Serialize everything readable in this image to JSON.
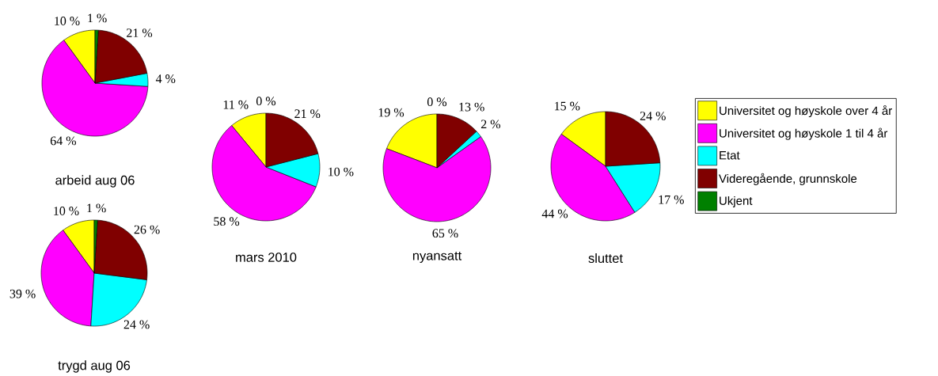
{
  "chart_data": [
    {
      "type": "pie",
      "title": "arbeid aug 06",
      "categories": [
        null,
        null,
        null,
        null,
        null
      ],
      "values": [
        10,
        64,
        4,
        21,
        1
      ],
      "colors": [
        "#ffff00",
        "#ff00ff",
        "#00ffff",
        "#800000",
        "#008000"
      ],
      "value_labels": [
        "10 %",
        "64 %",
        "4 %",
        "21 %",
        "1 %"
      ]
    },
    {
      "type": "pie",
      "title": "trygd aug 06",
      "categories": [
        null,
        null,
        null,
        null,
        null
      ],
      "values": [
        10,
        39,
        24,
        26,
        1
      ],
      "colors": [
        "#ffff00",
        "#ff00ff",
        "#00ffff",
        "#800000",
        "#008000"
      ],
      "value_labels": [
        "10 %",
        "39 %",
        "24 %",
        "26 %",
        "1 %"
      ]
    },
    {
      "type": "pie",
      "title": "mars 2010",
      "categories": [
        null,
        null,
        null,
        null,
        null
      ],
      "values": [
        11,
        58,
        10,
        21,
        0
      ],
      "colors": [
        "#ffff00",
        "#ff00ff",
        "#00ffff",
        "#800000",
        "#008000"
      ],
      "value_labels": [
        "11 %",
        "58 %",
        "10 %",
        "21 %",
        "0 %"
      ]
    },
    {
      "type": "pie",
      "title": "nyansatt",
      "categories": [
        null,
        null,
        null,
        null,
        null
      ],
      "values": [
        19,
        65,
        2,
        13,
        0
      ],
      "colors": [
        "#ffff00",
        "#ff00ff",
        "#00ffff",
        "#800000",
        "#008000"
      ],
      "value_labels": [
        "19 %",
        "65 %",
        "2 %",
        "13 %",
        "0 %"
      ]
    },
    {
      "type": "pie",
      "title": "sluttet",
      "categories": [
        "Universitet og høyskole over 4 år",
        "Universitet og høyskole 1 til 4 år",
        "Etat",
        "Videregående, grunnskole",
        "Ukjent"
      ],
      "values": [
        15,
        44,
        17,
        24,
        0
      ],
      "colors": [
        "#ffff00",
        "#ff00ff",
        "#00ffff",
        "#800000",
        "#008000"
      ],
      "value_labels": [
        "15 %",
        "44 %",
        "17 %",
        "24 %",
        null
      ],
      "legend": "right"
    }
  ]
}
